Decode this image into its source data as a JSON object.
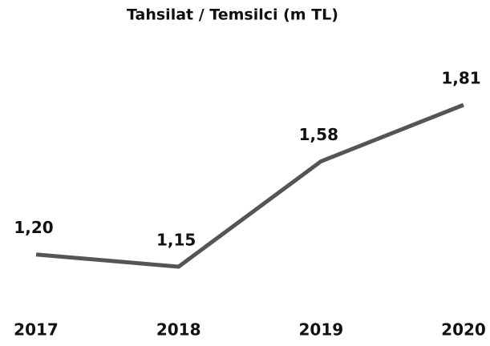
{
  "chart_data": {
    "type": "line",
    "title": "Tahsilat / Temsilci (m TL)",
    "categories": [
      "2017",
      "2018",
      "2019",
      "2020"
    ],
    "values": [
      1.2,
      1.15,
      1.58,
      1.81
    ],
    "value_labels": [
      "1,20",
      "1,15",
      "1,58",
      "1,81"
    ],
    "color": "#555555"
  }
}
